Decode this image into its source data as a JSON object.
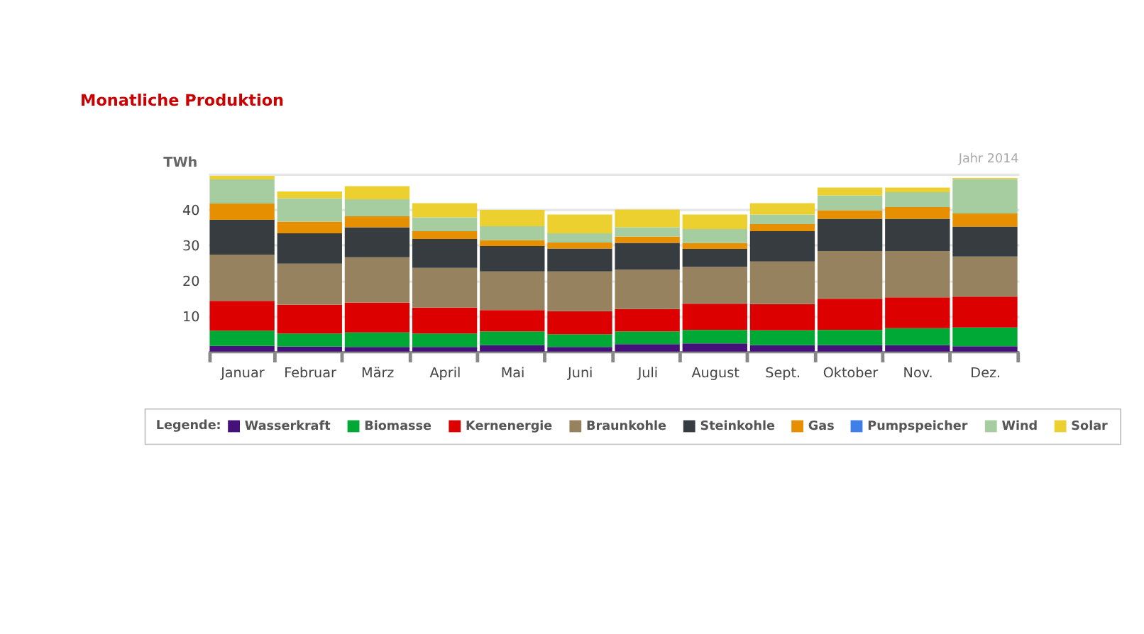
{
  "chart_data": {
    "type": "bar",
    "stacked": true,
    "title": "Monatliche Produktion",
    "ylabel": "TWh",
    "legend_title": "Legende:",
    "annotations": [
      "Jahr 2014"
    ],
    "categories": [
      "Januar",
      "Februar",
      "März",
      "April",
      "Mai",
      "Juni",
      "Juli",
      "August",
      "Sept.",
      "Oktober",
      "Nov.",
      "Dez."
    ],
    "series": [
      {
        "name": "Wasserkraft",
        "color": "#46107a",
        "values": [
          1.6,
          1.4,
          1.3,
          1.3,
          1.8,
          1.3,
          2.1,
          2.3,
          1.8,
          1.8,
          1.8,
          1.5
        ]
      },
      {
        "name": "Biomasse",
        "color": "#00a835",
        "values": [
          4.3,
          3.7,
          4.1,
          3.8,
          3.9,
          3.6,
          3.6,
          3.8,
          4.2,
          4.3,
          4.8,
          5.3
        ]
      },
      {
        "name": "Kernenergie",
        "color": "#dd0000",
        "values": [
          8.4,
          8.1,
          8.4,
          7.3,
          6.0,
          6.5,
          6.3,
          7.4,
          7.4,
          8.8,
          8.7,
          8.7
        ]
      },
      {
        "name": "Braunkohle",
        "color": "#978260",
        "values": [
          13.0,
          11.6,
          12.8,
          11.2,
          10.9,
          11.2,
          11.1,
          10.4,
          12.0,
          13.4,
          13.0,
          11.3
        ]
      },
      {
        "name": "Steinkohle",
        "color": "#363c40",
        "values": [
          9.8,
          8.5,
          8.4,
          8.1,
          7.1,
          6.4,
          7.5,
          5.0,
          8.5,
          9.1,
          9.1,
          8.4
        ]
      },
      {
        "name": "Gas",
        "color": "#e68f00",
        "values": [
          4.6,
          3.3,
          3.1,
          2.2,
          1.7,
          1.7,
          1.8,
          1.7,
          2.0,
          2.4,
          3.3,
          3.7
        ]
      },
      {
        "name": "Pumpspeicher",
        "color": "#3f7fe8",
        "values": [
          null,
          null,
          null,
          null,
          null,
          null,
          null,
          null,
          null,
          null,
          null,
          null
        ]
      },
      {
        "name": "Wind",
        "color": "#a6cda0",
        "values": [
          6.8,
          6.6,
          4.8,
          3.9,
          3.9,
          2.6,
          2.6,
          3.9,
          2.7,
          4.2,
          4.2,
          9.7
        ]
      },
      {
        "name": "Solar",
        "color": "#ecd030",
        "values": [
          1.0,
          1.9,
          3.7,
          4.0,
          4.6,
          5.3,
          5.0,
          4.1,
          3.2,
          2.2,
          1.3,
          0.3
        ]
      }
    ],
    "ylim": [
      0,
      50
    ],
    "yticks": [
      {
        "value": 0,
        "label": null
      },
      10,
      20,
      30,
      40,
      {
        "value": 50,
        "label": null
      }
    ],
    "grid": "y",
    "legend": "bottom"
  }
}
